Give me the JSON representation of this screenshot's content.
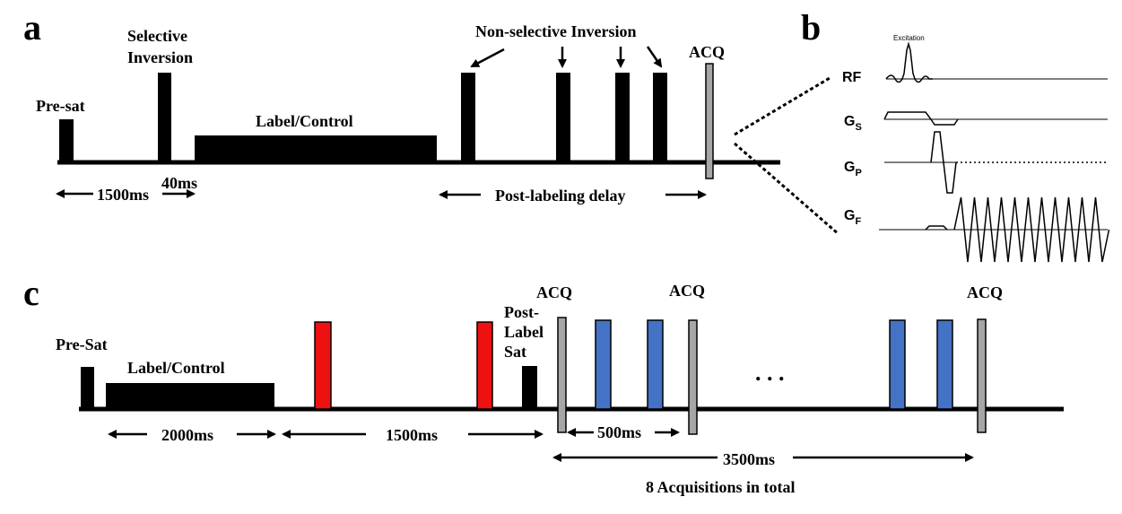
{
  "panels": {
    "a": {
      "letter": "a",
      "presat": "Pre-sat",
      "selective_inversion_line1": "Selective",
      "selective_inversion_line2": "Inversion",
      "label_control": "Label/Control",
      "nonselective_inversion": "Non-selective Inversion",
      "acq": "ACQ",
      "t_1500": "1500ms",
      "t_40": "40ms",
      "post_labeling_delay": "Post-labeling delay"
    },
    "b": {
      "letter": "b",
      "excitation": "Excitation",
      "rf": "RF",
      "gs_main": "G",
      "gs_sub": "S",
      "gp_main": "G",
      "gp_sub": "P",
      "gf_main": "G",
      "gf_sub": "F"
    },
    "c": {
      "letter": "c",
      "presat": "Pre-Sat",
      "label_control": "Label/Control",
      "post_label_sat_line1": "Post-",
      "post_label_sat_line2": "Label",
      "post_label_sat_line3": "Sat",
      "acq1": "ACQ",
      "acq2": "ACQ",
      "acq3": "ACQ",
      "ellipsis": ". . .",
      "t_2000": "2000ms",
      "t_1500": "1500ms",
      "t_500": "500ms",
      "t_3500": "3500ms",
      "acq_total": "8 Acquisitions in total"
    }
  },
  "colors": {
    "black": "#000000",
    "acq_gray": "#a6a6a6",
    "red_pulse": "#ee1111",
    "blue_pulse": "#4472c4"
  }
}
